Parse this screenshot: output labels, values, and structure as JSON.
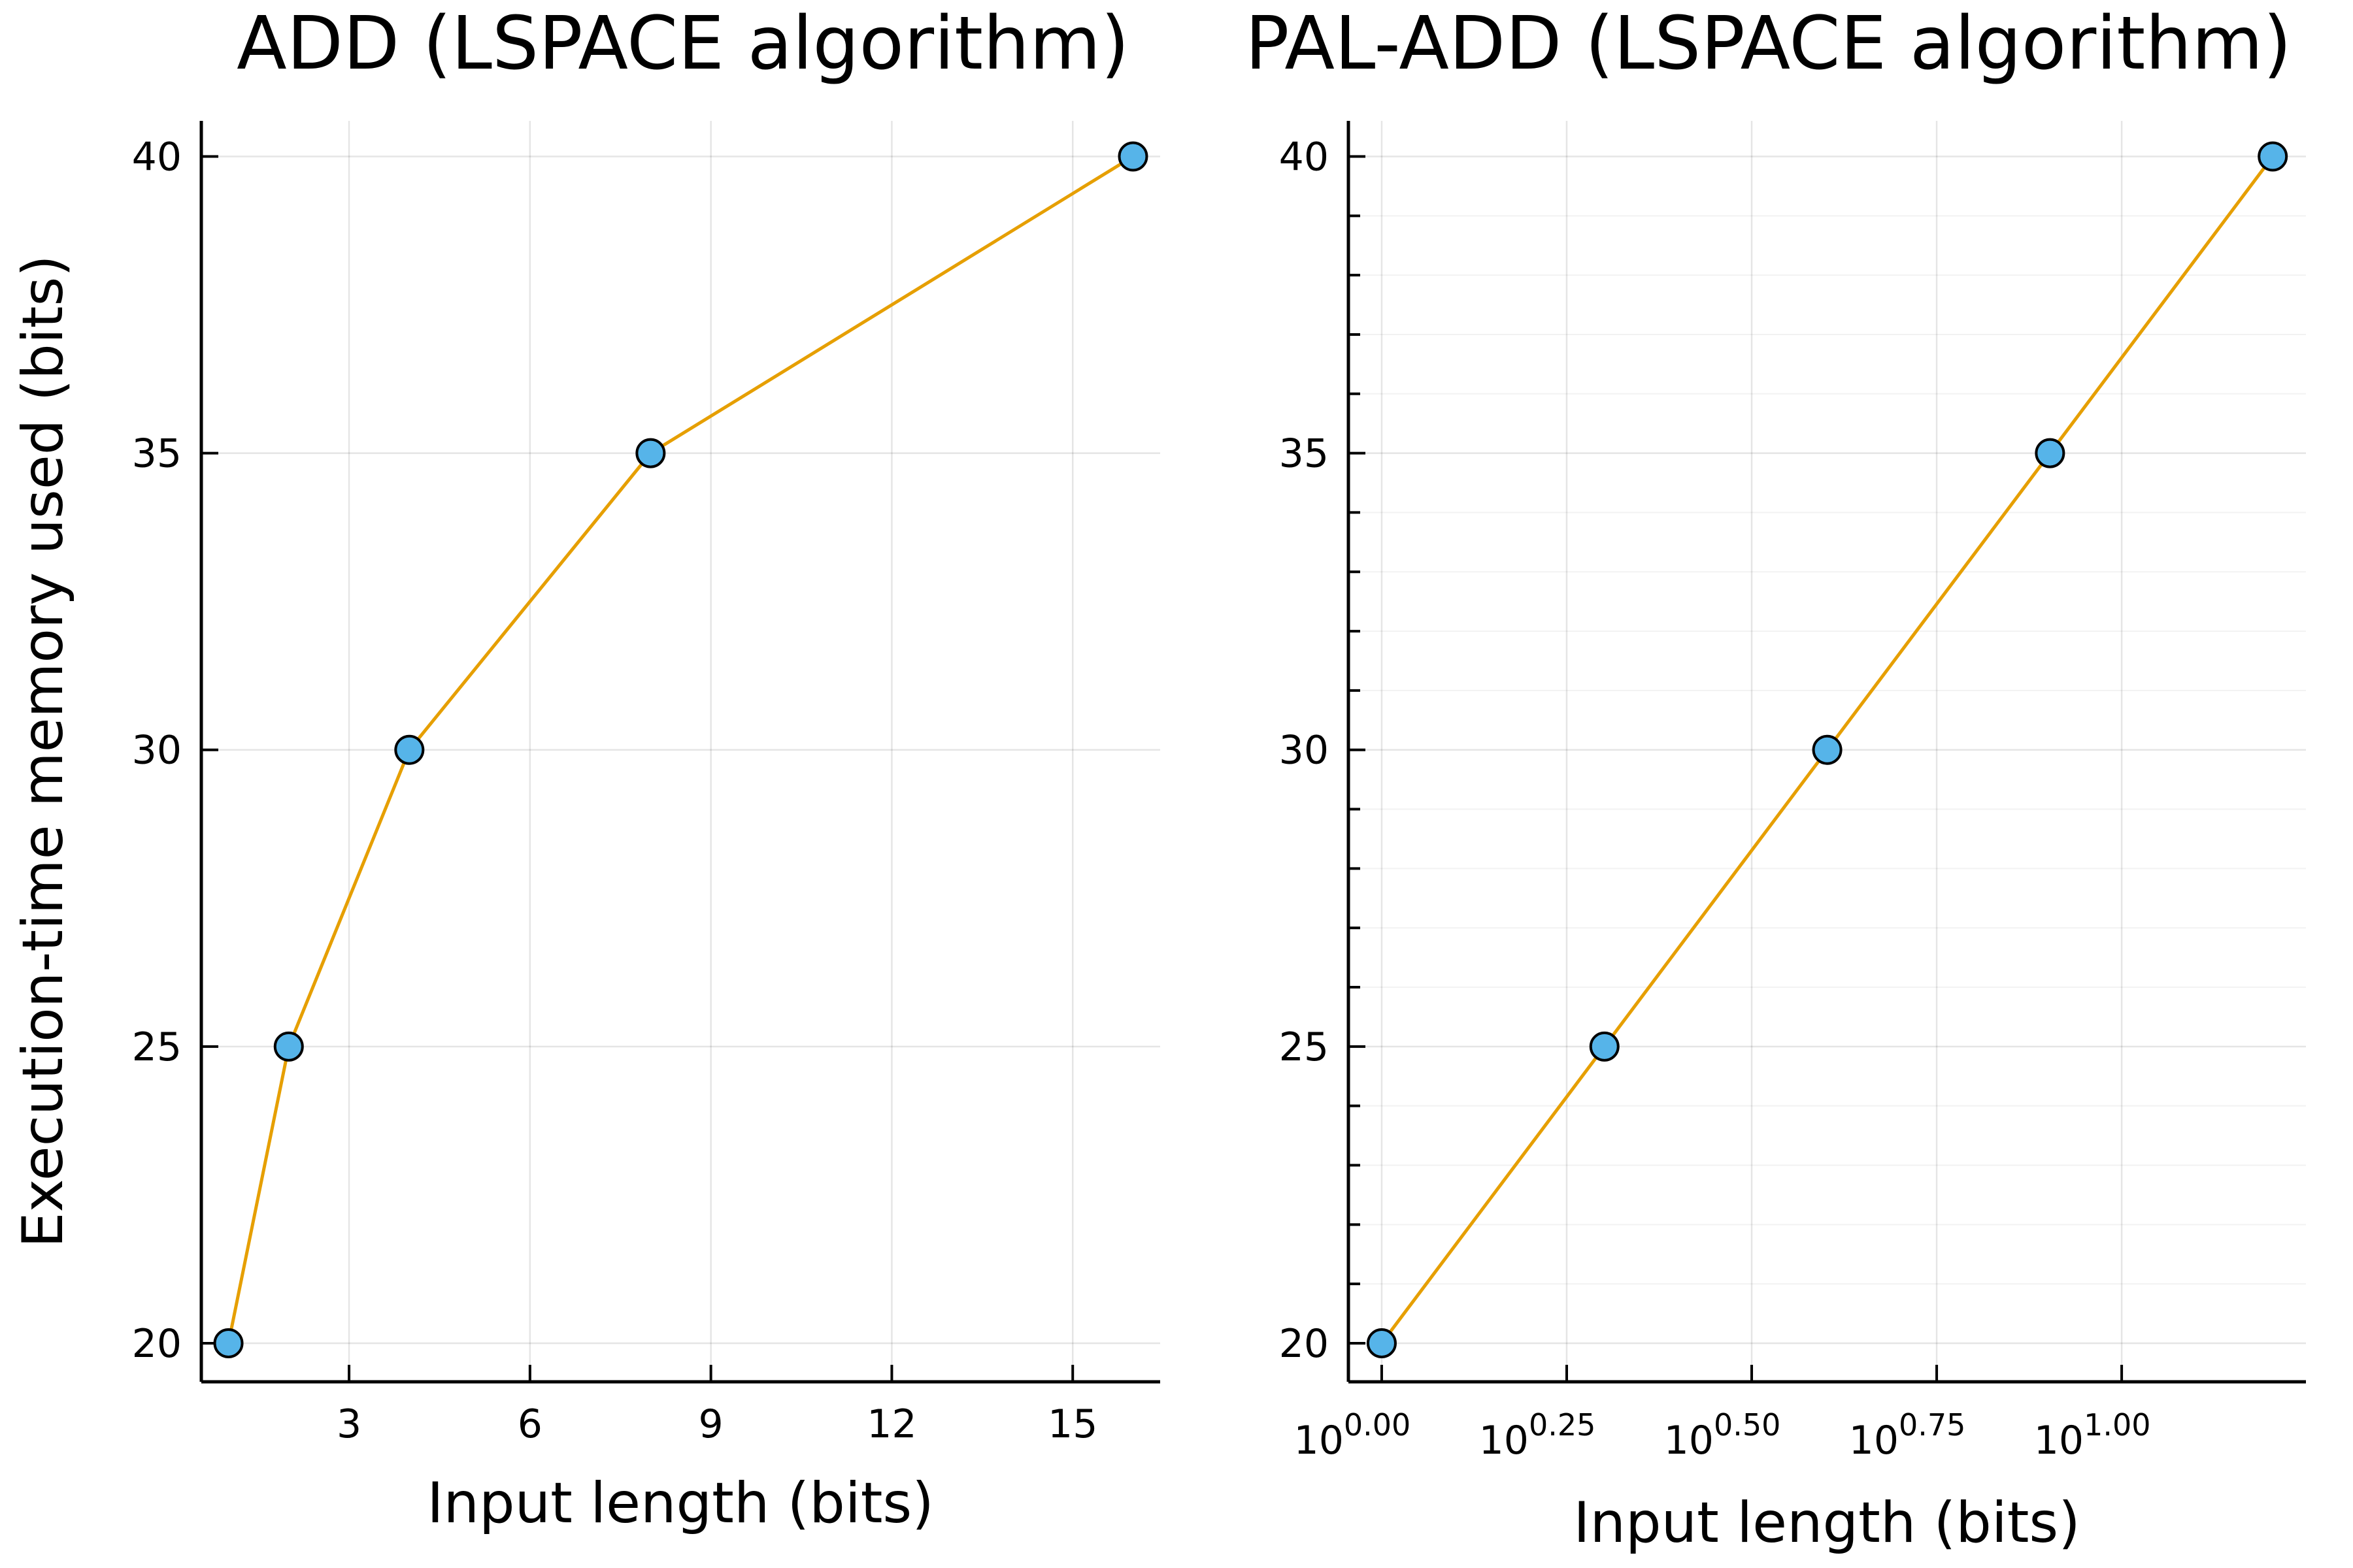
{
  "chart_data": [
    {
      "type": "line",
      "title": "ADD (LSPACE algorithm)",
      "xlabel": "Input length (bits)",
      "ylabel": "Execution-time memory used (bits)",
      "x": [
        1,
        2,
        4,
        8,
        16
      ],
      "y": [
        20,
        25,
        30,
        35,
        40
      ],
      "xscale": "linear",
      "xticks": [
        3,
        6,
        9,
        12,
        15
      ],
      "xtick_labels": [
        "3",
        "6",
        "9",
        "12",
        "15"
      ],
      "yticks": [
        20,
        25,
        30,
        35,
        40
      ],
      "ytick_labels": [
        "20",
        "25",
        "30",
        "35",
        "40"
      ],
      "grid": true,
      "legend": "none",
      "line_color": "#e69f00",
      "marker_color": "#56b4e9"
    },
    {
      "type": "line",
      "title": "PAL-ADD (LSPACE algorithm)",
      "xlabel": "Input length (bits)",
      "ylabel": "",
      "x": [
        1,
        2,
        4,
        8,
        16
      ],
      "y": [
        20,
        25,
        30,
        35,
        40
      ],
      "xscale": "log10",
      "xticks": [
        1,
        1.7783,
        3.1623,
        5.6234,
        10
      ],
      "xtick_labels": [
        {
          "base": "10",
          "exp": "0.00"
        },
        {
          "base": "10",
          "exp": "0.25"
        },
        {
          "base": "10",
          "exp": "0.50"
        },
        {
          "base": "10",
          "exp": "0.75"
        },
        {
          "base": "10",
          "exp": "1.00"
        }
      ],
      "yticks": [
        20,
        25,
        30,
        35,
        40
      ],
      "ytick_labels": [
        "20",
        "25",
        "30",
        "35",
        "40"
      ],
      "grid": true,
      "minor_grid": true,
      "legend": "none",
      "line_color": "#e69f00",
      "marker_color": "#56b4e9"
    }
  ]
}
